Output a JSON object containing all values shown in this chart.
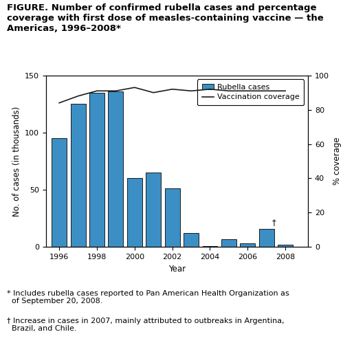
{
  "title_line1": "FIGURE. Number of confirmed rubella cases and percentage",
  "title_line2": "coverage with first dose of measles-containing vaccine — the",
  "title_line3": "Americas, 1996–2008*",
  "bar_years": [
    1996,
    1997,
    1998,
    1999,
    2000,
    2001,
    2002,
    2003,
    2004,
    2005,
    2006,
    2007,
    2008
  ],
  "bar_values": [
    95,
    125,
    135,
    136,
    60,
    65,
    51,
    12,
    1,
    7,
    3,
    16,
    2
  ],
  "vaccination_years": [
    1996,
    1997,
    1998,
    1999,
    2000,
    2001,
    2002,
    2003,
    2004,
    2005,
    2006,
    2007,
    2008
  ],
  "vaccination_coverage": [
    84,
    88,
    91,
    91,
    93,
    90,
    92,
    91,
    92,
    91,
    91,
    91,
    91
  ],
  "bar_color": "#3b8fc4",
  "bar_edgecolor": "#1a1a1a",
  "line_color": "#1a1a1a",
  "ylabel_left": "No. of cases (in thousands)",
  "ylabel_right": "% coverage",
  "xlabel": "Year",
  "ylim_left": [
    0,
    150
  ],
  "ylim_right": [
    0,
    100
  ],
  "yticks_left": [
    0,
    50,
    100,
    150
  ],
  "yticks_right": [
    0,
    20,
    40,
    60,
    80,
    100
  ],
  "xlim": [
    1995.3,
    2009.2
  ],
  "xticks": [
    1996,
    1998,
    2000,
    2002,
    2004,
    2006,
    2008
  ],
  "footnote1_symbol": "* ",
  "footnote1_text": "Includes rubella cases reported to Pan American Health Organization as\n  of September 20, 2008.",
  "footnote2_symbol": "† ",
  "footnote2_text": "Increase in cases in 2007, mainly attributed to outbreaks in Argentina,\n  Brazil, and Chile.",
  "legend_rubella": "Rubella cases",
  "legend_vaccination": "Vaccination coverage",
  "bar_width": 0.8,
  "title_fontsize": 9.5,
  "axis_fontsize": 8.5,
  "tick_fontsize": 8,
  "footnote_fontsize": 8
}
